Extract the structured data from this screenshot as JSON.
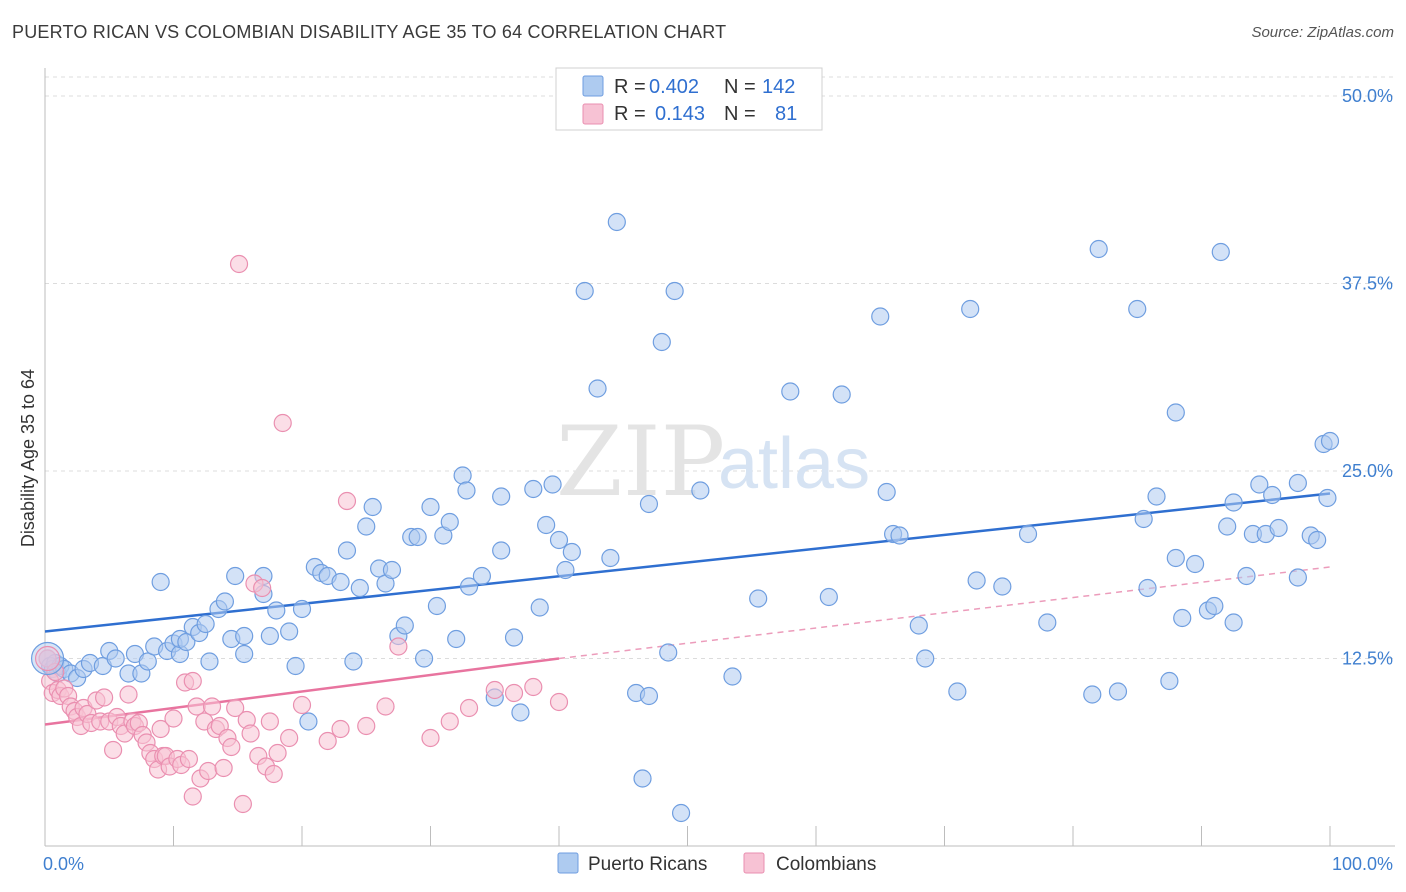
{
  "header": {
    "title": "PUERTO RICAN VS COLOMBIAN DISABILITY AGE 35 TO 64 CORRELATION CHART",
    "source": "Source: ZipAtlas.com"
  },
  "watermark": {
    "zip": "ZIP",
    "atlas": "atlas"
  },
  "legend": {
    "rows": [
      {
        "r_label": "R =",
        "r_value": "0.402",
        "n_label": "N =",
        "n_value": "142",
        "color": "#aecbf0",
        "stroke": "#6f9ee0"
      },
      {
        "r_label": "R =",
        "r_value": "0.143",
        "n_label": "N =",
        "n_value": "81",
        "color": "#f7c2d4",
        "stroke": "#ea8fb0"
      }
    ]
  },
  "bottom_legend": [
    {
      "label": "Puerto Ricans",
      "color": "#aecbf0",
      "stroke": "#6f9ee0"
    },
    {
      "label": "Colombians",
      "color": "#f7c2d4",
      "stroke": "#ea8fb0"
    }
  ],
  "chart_data": {
    "type": "scatter",
    "title": "PUERTO RICAN VS COLOMBIAN DISABILITY AGE 35 TO 64 CORRELATION CHART",
    "xlabel": "",
    "ylabel": "Disability Age 35 to 64",
    "xlim": [
      0,
      100
    ],
    "ylim": [
      0,
      50
    ],
    "x_tick_labels": [
      "0.0%",
      "100.0%"
    ],
    "y_ticks": [
      {
        "value": 12.5,
        "label": "12.5%"
      },
      {
        "value": 25.0,
        "label": "25.0%"
      },
      {
        "value": 37.5,
        "label": "37.5%"
      },
      {
        "value": 50.0,
        "label": "50.0%"
      }
    ],
    "series": [
      {
        "name": "Puerto Ricans",
        "color": "#6f9ee0",
        "fill": "#aecbf0",
        "trend": {
          "x": [
            0,
            100
          ],
          "y": [
            14.3,
            23.5
          ],
          "style": "solid",
          "color": "#2f6fd0"
        },
        "points": [
          [
            0.2,
            12.5
          ],
          [
            0.4,
            12.0
          ],
          [
            0.6,
            11.8
          ],
          [
            0.8,
            12.2
          ],
          [
            1.0,
            11.5
          ],
          [
            1.2,
            12.0
          ],
          [
            1.5,
            11.8
          ],
          [
            2.0,
            11.5
          ],
          [
            2.5,
            11.2
          ],
          [
            3.0,
            11.8
          ],
          [
            3.5,
            12.2
          ],
          [
            4.5,
            12.0
          ],
          [
            5.0,
            13.0
          ],
          [
            5.5,
            12.5
          ],
          [
            6.5,
            11.5
          ],
          [
            7.0,
            12.8
          ],
          [
            7.5,
            11.5
          ],
          [
            8.0,
            12.3
          ],
          [
            8.5,
            13.3
          ],
          [
            9.0,
            17.6
          ],
          [
            9.5,
            13.0
          ],
          [
            10.0,
            13.5
          ],
          [
            10.5,
            12.8
          ],
          [
            10.5,
            13.8
          ],
          [
            11.0,
            13.6
          ],
          [
            11.5,
            14.6
          ],
          [
            12.0,
            14.2
          ],
          [
            12.5,
            14.8
          ],
          [
            12.8,
            12.3
          ],
          [
            13.5,
            15.8
          ],
          [
            14.0,
            16.3
          ],
          [
            14.5,
            13.8
          ],
          [
            14.8,
            18.0
          ],
          [
            15.5,
            12.8
          ],
          [
            15.5,
            14.0
          ],
          [
            17.0,
            16.8
          ],
          [
            17.0,
            18.0
          ],
          [
            17.5,
            14.0
          ],
          [
            18.0,
            15.7
          ],
          [
            19.0,
            14.3
          ],
          [
            19.5,
            12.0
          ],
          [
            20.0,
            15.8
          ],
          [
            20.5,
            8.3
          ],
          [
            21.0,
            18.6
          ],
          [
            21.5,
            18.2
          ],
          [
            22.0,
            18.0
          ],
          [
            23.0,
            17.6
          ],
          [
            23.5,
            19.7
          ],
          [
            24.0,
            12.3
          ],
          [
            24.5,
            17.2
          ],
          [
            25.0,
            21.3
          ],
          [
            25.5,
            22.6
          ],
          [
            26.0,
            18.5
          ],
          [
            26.5,
            17.5
          ],
          [
            27.0,
            18.4
          ],
          [
            27.5,
            14.0
          ],
          [
            28.0,
            14.7
          ],
          [
            28.5,
            20.6
          ],
          [
            29.0,
            20.6
          ],
          [
            29.5,
            12.5
          ],
          [
            30.0,
            22.6
          ],
          [
            30.5,
            16.0
          ],
          [
            31.0,
            20.7
          ],
          [
            31.5,
            21.6
          ],
          [
            32.0,
            13.8
          ],
          [
            32.5,
            24.7
          ],
          [
            32.8,
            23.7
          ],
          [
            33.0,
            17.3
          ],
          [
            34.0,
            18.0
          ],
          [
            35.0,
            9.9
          ],
          [
            35.5,
            19.7
          ],
          [
            35.5,
            23.3
          ],
          [
            36.5,
            13.9
          ],
          [
            37.0,
            8.9
          ],
          [
            38.0,
            23.8
          ],
          [
            38.5,
            15.9
          ],
          [
            39.0,
            21.4
          ],
          [
            39.5,
            24.1
          ],
          [
            40.0,
            20.4
          ],
          [
            40.5,
            18.4
          ],
          [
            41.0,
            19.6
          ],
          [
            42.0,
            37.0
          ],
          [
            43.0,
            30.5
          ],
          [
            44.0,
            19.2
          ],
          [
            44.5,
            41.6
          ],
          [
            46.0,
            10.2
          ],
          [
            46.5,
            4.5
          ],
          [
            47.0,
            10.0
          ],
          [
            47.0,
            22.8
          ],
          [
            48.0,
            33.6
          ],
          [
            48.5,
            12.9
          ],
          [
            49.0,
            37.0
          ],
          [
            49.5,
            2.2
          ],
          [
            51.0,
            23.7
          ],
          [
            53.5,
            11.3
          ],
          [
            55.5,
            16.5
          ],
          [
            58.0,
            30.3
          ],
          [
            61.0,
            16.6
          ],
          [
            62.0,
            30.1
          ],
          [
            65.0,
            35.3
          ],
          [
            65.5,
            23.6
          ],
          [
            66.0,
            20.8
          ],
          [
            66.5,
            20.7
          ],
          [
            68.0,
            14.7
          ],
          [
            68.5,
            12.5
          ],
          [
            71.0,
            10.3
          ],
          [
            72.0,
            35.8
          ],
          [
            72.5,
            17.7
          ],
          [
            74.5,
            17.3
          ],
          [
            76.5,
            20.8
          ],
          [
            78.0,
            14.9
          ],
          [
            81.5,
            10.1
          ],
          [
            82.0,
            39.8
          ],
          [
            83.5,
            10.3
          ],
          [
            85.0,
            35.8
          ],
          [
            85.5,
            21.8
          ],
          [
            85.8,
            17.2
          ],
          [
            86.5,
            23.3
          ],
          [
            87.5,
            11.0
          ],
          [
            88.0,
            19.2
          ],
          [
            88.0,
            28.9
          ],
          [
            88.5,
            15.2
          ],
          [
            89.5,
            18.8
          ],
          [
            90.5,
            15.7
          ],
          [
            91.0,
            16.0
          ],
          [
            91.5,
            39.6
          ],
          [
            92.0,
            21.3
          ],
          [
            92.5,
            22.9
          ],
          [
            92.5,
            14.9
          ],
          [
            93.5,
            18.0
          ],
          [
            94.0,
            20.8
          ],
          [
            94.5,
            24.1
          ],
          [
            95.0,
            20.8
          ],
          [
            95.5,
            23.4
          ],
          [
            96.0,
            21.2
          ],
          [
            97.5,
            17.9
          ],
          [
            97.5,
            24.2
          ],
          [
            98.5,
            20.7
          ],
          [
            99.0,
            20.4
          ],
          [
            99.5,
            26.8
          ],
          [
            99.8,
            23.2
          ],
          [
            100.0,
            27.0
          ]
        ]
      },
      {
        "name": "Colombians",
        "color": "#ea8fb0",
        "fill": "#f7c2d4",
        "trend": {
          "x": [
            0,
            40
          ],
          "y": [
            8.1,
            12.5
          ],
          "style": "solid",
          "color": "#e8749f"
        },
        "trend_extension": {
          "x": [
            40,
            100
          ],
          "y": [
            12.5,
            18.6
          ],
          "style": "dashed",
          "color": "#ec9cbb"
        },
        "points": [
          [
            0.2,
            12.5
          ],
          [
            0.4,
            11.0
          ],
          [
            0.6,
            10.2
          ],
          [
            0.8,
            11.6
          ],
          [
            1.0,
            10.4
          ],
          [
            1.2,
            10.0
          ],
          [
            1.5,
            10.5
          ],
          [
            1.8,
            10.0
          ],
          [
            2.0,
            9.3
          ],
          [
            2.3,
            9.0
          ],
          [
            2.5,
            8.6
          ],
          [
            2.8,
            8.0
          ],
          [
            3.0,
            9.2
          ],
          [
            3.3,
            8.8
          ],
          [
            3.6,
            8.2
          ],
          [
            4.0,
            9.7
          ],
          [
            4.3,
            8.3
          ],
          [
            4.6,
            9.9
          ],
          [
            5.0,
            8.3
          ],
          [
            5.3,
            6.4
          ],
          [
            5.6,
            8.6
          ],
          [
            5.9,
            8.0
          ],
          [
            6.2,
            7.5
          ],
          [
            6.5,
            10.1
          ],
          [
            6.8,
            8.3
          ],
          [
            7.0,
            8.0
          ],
          [
            7.3,
            8.2
          ],
          [
            7.6,
            7.4
          ],
          [
            7.9,
            6.9
          ],
          [
            8.2,
            6.2
          ],
          [
            8.5,
            5.8
          ],
          [
            8.8,
            5.1
          ],
          [
            9.0,
            7.8
          ],
          [
            9.2,
            6.0
          ],
          [
            9.4,
            6.0
          ],
          [
            9.7,
            5.3
          ],
          [
            10.0,
            8.5
          ],
          [
            10.3,
            5.8
          ],
          [
            10.6,
            5.4
          ],
          [
            10.9,
            10.9
          ],
          [
            11.2,
            5.8
          ],
          [
            11.5,
            11.0
          ],
          [
            11.8,
            9.3
          ],
          [
            11.5,
            3.3
          ],
          [
            12.1,
            4.5
          ],
          [
            12.4,
            8.3
          ],
          [
            12.7,
            5.0
          ],
          [
            13.0,
            9.3
          ],
          [
            13.3,
            7.8
          ],
          [
            13.6,
            8.0
          ],
          [
            13.9,
            5.2
          ],
          [
            14.2,
            7.2
          ],
          [
            14.5,
            6.6
          ],
          [
            14.8,
            9.2
          ],
          [
            15.1,
            38.8
          ],
          [
            15.4,
            2.8
          ],
          [
            15.7,
            8.4
          ],
          [
            16.0,
            7.5
          ],
          [
            16.3,
            17.5
          ],
          [
            16.6,
            6.0
          ],
          [
            16.9,
            17.2
          ],
          [
            17.2,
            5.3
          ],
          [
            17.5,
            8.3
          ],
          [
            17.8,
            4.8
          ],
          [
            18.1,
            6.2
          ],
          [
            18.5,
            28.2
          ],
          [
            19.0,
            7.2
          ],
          [
            20.0,
            9.4
          ],
          [
            22.0,
            7.0
          ],
          [
            23.0,
            7.8
          ],
          [
            23.5,
            23.0
          ],
          [
            25.0,
            8.0
          ],
          [
            26.5,
            9.3
          ],
          [
            27.5,
            13.3
          ],
          [
            30.0,
            7.2
          ],
          [
            31.5,
            8.3
          ],
          [
            33.0,
            9.2
          ],
          [
            35.0,
            10.4
          ],
          [
            36.5,
            10.2
          ],
          [
            38.0,
            10.6
          ],
          [
            40.0,
            9.6
          ]
        ]
      }
    ]
  }
}
